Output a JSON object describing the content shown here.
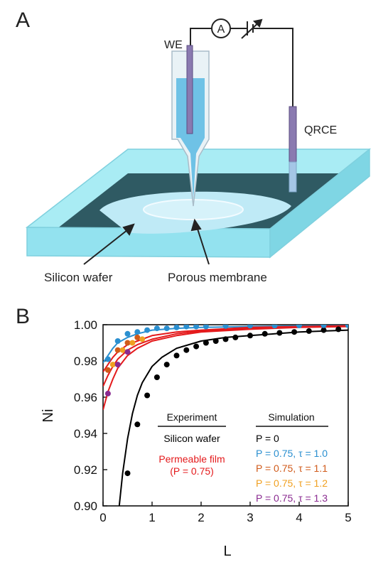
{
  "panel_a": {
    "label": "A",
    "we_label": "WE",
    "ammeter_symbol": "A",
    "qrce_label": "QRCE",
    "silicon_wafer_label": "Silicon wafer",
    "porous_membrane_label": "Porous membrane",
    "colors": {
      "cell": "#8fe3f0",
      "base": "#2f5a63",
      "solution": "#bdeaf6",
      "electrode": "#8a7ab0"
    }
  },
  "panel_b": {
    "label": "B",
    "legend": {
      "experiment_header": "Experiment",
      "experiment_items": [
        {
          "text": "Silicon wafer",
          "color": "#000000"
        },
        {
          "text": "Permeable film",
          "color": "#e41a1c"
        },
        {
          "text": "(P = 0.75)",
          "color": "#e41a1c"
        }
      ],
      "simulation_header": "Simulation",
      "simulation_items": [
        {
          "text": "P = 0",
          "color": "#000000"
        },
        {
          "text": "P = 0.75, τ = 1.0",
          "color": "#2a8fd0"
        },
        {
          "text": "P = 0.75, τ = 1.1",
          "color": "#d05a1a"
        },
        {
          "text": "P = 0.75, τ = 1.2",
          "color": "#f0a020"
        },
        {
          "text": "P = 0.75, τ = 1.3",
          "color": "#8a2a90"
        }
      ]
    }
  },
  "chart_data": {
    "type": "scatter",
    "xlabel": "L",
    "ylabel": "Ni",
    "xlim": [
      0,
      5
    ],
    "ylim": [
      0.9,
      1.0
    ],
    "xticks": [
      0,
      1,
      2,
      3,
      4,
      5
    ],
    "yticks": [
      0.9,
      0.92,
      0.94,
      0.96,
      0.98,
      1.0
    ],
    "xtick_labels": [
      "0",
      "1",
      "2",
      "3",
      "4",
      "5"
    ],
    "ytick_labels": [
      "0.90",
      "0.92",
      "0.94",
      "0.96",
      "0.98",
      "1.00"
    ],
    "grid": false,
    "lines": [
      {
        "name": "P = 0",
        "color": "#000000",
        "x": [
          0.33,
          0.4,
          0.5,
          0.6,
          0.7,
          0.8,
          1.0,
          1.2,
          1.5,
          2.0,
          2.5,
          3.0,
          3.5,
          4.0,
          4.5,
          5.0
        ],
        "y": [
          0.9,
          0.918,
          0.937,
          0.951,
          0.961,
          0.968,
          0.977,
          0.982,
          0.987,
          0.991,
          0.993,
          0.994,
          0.995,
          0.996,
          0.9965,
          0.997
        ]
      },
      {
        "name": "P = 0.75, τ = 1.0",
        "color": "#2a8fd0",
        "x": [
          0.0,
          0.1,
          0.2,
          0.3,
          0.5,
          0.7,
          1.0,
          1.5,
          2.0,
          3.0,
          4.0,
          5.0
        ],
        "y": [
          0.979,
          0.983,
          0.987,
          0.99,
          0.993,
          0.995,
          0.997,
          0.998,
          0.9985,
          0.999,
          0.9993,
          0.9995
        ]
      },
      {
        "name": "P = 0.75, τ = 1.1",
        "color": "#e41a1c",
        "x": [
          0.0,
          0.1,
          0.2,
          0.3,
          0.5,
          0.7,
          1.0,
          1.5,
          2.0,
          3.0,
          4.0,
          5.0
        ],
        "y": [
          0.953,
          0.963,
          0.97,
          0.976,
          0.983,
          0.987,
          0.991,
          0.994,
          0.996,
          0.9975,
          0.9985,
          0.999
        ]
      },
      {
        "name": "P = 0.75, τ = 1.2",
        "color": "#e41a1c",
        "x": [
          0.0,
          0.1,
          0.2,
          0.3,
          0.5,
          0.7,
          1.0,
          1.5,
          2.0,
          3.0,
          4.0,
          5.0
        ],
        "y": [
          0.966,
          0.972,
          0.977,
          0.981,
          0.986,
          0.989,
          0.992,
          0.995,
          0.9965,
          0.998,
          0.9988,
          0.9992
        ]
      },
      {
        "name": "P = 0.75, τ = 1.3",
        "color": "#e41a1c",
        "x": [
          0.0,
          0.1,
          0.2,
          0.3,
          0.5,
          0.7,
          1.0,
          1.5,
          2.0,
          3.0,
          4.0,
          5.0
        ],
        "y": [
          0.974,
          0.978,
          0.982,
          0.985,
          0.989,
          0.991,
          0.994,
          0.996,
          0.997,
          0.9985,
          0.999,
          0.9994
        ]
      }
    ],
    "scatter": [
      {
        "name": "Silicon wafer",
        "color": "#000000",
        "x": [
          0.5,
          0.7,
          0.9,
          1.1,
          1.3,
          1.5,
          1.7,
          1.9,
          2.1,
          2.3,
          2.5,
          2.7,
          3.0,
          3.3,
          3.6,
          3.9,
          4.2,
          4.5,
          4.8
        ],
        "y": [
          0.918,
          0.945,
          0.961,
          0.971,
          0.978,
          0.983,
          0.986,
          0.988,
          0.99,
          0.991,
          0.992,
          0.993,
          0.994,
          0.995,
          0.9955,
          0.996,
          0.9965,
          0.997,
          0.9975
        ]
      },
      {
        "name": "P = 0.75, τ = 1.0",
        "color": "#2a8fd0",
        "x": [
          0.1,
          0.3,
          0.5,
          0.7,
          0.9,
          1.1,
          1.3,
          1.5,
          1.7,
          1.9,
          2.1,
          2.5,
          3.0,
          3.5,
          4.0,
          4.5,
          5.0
        ],
        "y": [
          0.981,
          0.991,
          0.995,
          0.996,
          0.997,
          0.998,
          0.998,
          0.9985,
          0.999,
          0.999,
          0.999,
          0.9993,
          0.9995,
          0.9995,
          0.9996,
          0.9997,
          0.9997
        ]
      },
      {
        "name": "P = 0.75, τ = 1.1",
        "color": "#d05a1a",
        "x": [
          0.1,
          0.3,
          0.5,
          0.7
        ],
        "y": [
          0.975,
          0.986,
          0.99,
          0.993
        ]
      },
      {
        "name": "P = 0.75, τ = 1.2",
        "color": "#f0a020",
        "x": [
          0.2,
          0.4,
          0.6,
          0.8
        ],
        "y": [
          0.978,
          0.986,
          0.99,
          0.992
        ]
      },
      {
        "name": "P = 0.75, τ = 1.3",
        "color": "#8a2a90",
        "x": [
          0.1,
          0.3,
          0.5
        ],
        "y": [
          0.962,
          0.978,
          0.985
        ]
      }
    ]
  }
}
